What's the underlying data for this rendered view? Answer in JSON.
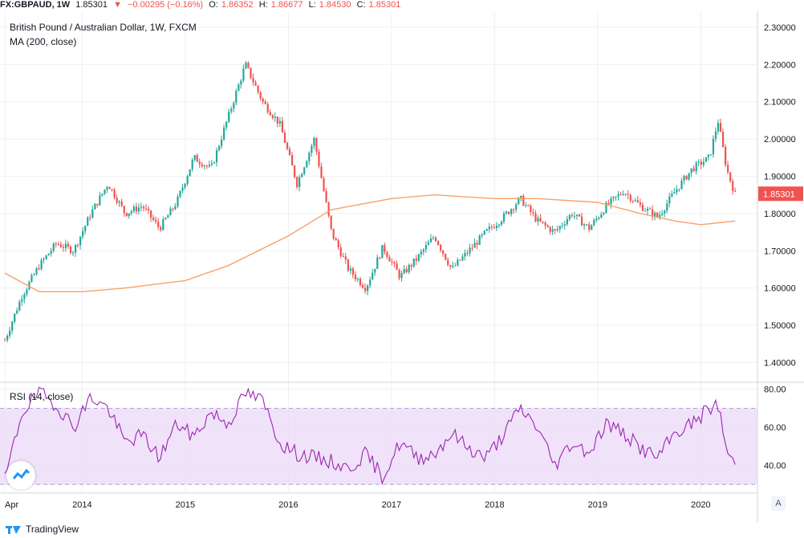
{
  "header": {
    "symbol": "FX:GBPAUD, 1W",
    "last": "1.85301",
    "change": "−0.00295 (−0.16%)",
    "open_label": "O:",
    "open": "1.86352",
    "high_label": "H:",
    "high": "1.86677",
    "low_label": "L:",
    "low": "1.84530",
    "close_label": "C:",
    "close": "1.85301"
  },
  "legend": {
    "title": "British Pound / Australian Dollar, 1W, FXCM",
    "ma": "MA (200, close)",
    "rsi": "RSI (14, close)"
  },
  "footer": {
    "brand": "TradingView"
  },
  "auto_label": "A",
  "colors": {
    "up": "#26a69a",
    "down": "#ef5350",
    "ma": "#f7a26a",
    "rsi": "#9c27b0",
    "rsi_band": "#e9d5f7"
  },
  "chart_data": [
    {
      "type": "line",
      "subtype": "candlestick",
      "title": "British Pound / Australian Dollar, 1W, FXCM",
      "x_ticks": [
        "Apr",
        "2014",
        "2015",
        "2016",
        "2017",
        "2018",
        "2019",
        "2020"
      ],
      "y_ticks": [
        "1.40000",
        "1.50000",
        "1.60000",
        "1.70000",
        "1.80000",
        "1.90000",
        "2.00000",
        "2.10000",
        "2.20000",
        "2.30000"
      ],
      "ylim": [
        1.36,
        2.33
      ],
      "last_price_label": "1.85301",
      "grid": true,
      "series": [
        {
          "name": "GBPAUD",
          "x": [
            "2013-04",
            "2013-06",
            "2013-08",
            "2013-10",
            "2013-12",
            "2014-02",
            "2014-04",
            "2014-06",
            "2014-08",
            "2014-10",
            "2014-12",
            "2015-02",
            "2015-04",
            "2015-06",
            "2015-08",
            "2015-10",
            "2015-12",
            "2016-02",
            "2016-04",
            "2016-06",
            "2016-08",
            "2016-10",
            "2016-12",
            "2017-02",
            "2017-04",
            "2017-06",
            "2017-08",
            "2017-10",
            "2017-12",
            "2018-02",
            "2018-04",
            "2018-06",
            "2018-08",
            "2018-10",
            "2018-12",
            "2019-02",
            "2019-04",
            "2019-06",
            "2019-08",
            "2019-10",
            "2019-12",
            "2020-02",
            "2020-03",
            "2020-04",
            "2020-05"
          ],
          "values": [
            1.46,
            1.58,
            1.66,
            1.72,
            1.7,
            1.8,
            1.88,
            1.8,
            1.82,
            1.76,
            1.83,
            1.95,
            1.92,
            2.06,
            2.2,
            2.1,
            2.04,
            1.88,
            2.0,
            1.75,
            1.65,
            1.6,
            1.71,
            1.63,
            1.68,
            1.74,
            1.65,
            1.7,
            1.75,
            1.79,
            1.84,
            1.78,
            1.75,
            1.8,
            1.76,
            1.82,
            1.86,
            1.82,
            1.79,
            1.86,
            1.92,
            1.95,
            2.05,
            1.92,
            1.85
          ]
        },
        {
          "name": "MA (200, close)",
          "x": [
            "2013-04",
            "2013-08",
            "2014-01",
            "2014-06",
            "2015-01",
            "2015-06",
            "2016-01",
            "2016-06",
            "2017-01",
            "2017-06",
            "2018-01",
            "2018-06",
            "2019-01",
            "2019-06",
            "2019-10",
            "2020-01",
            "2020-05"
          ],
          "values": [
            1.64,
            1.59,
            1.59,
            1.6,
            1.62,
            1.66,
            1.74,
            1.81,
            1.84,
            1.85,
            1.84,
            1.84,
            1.83,
            1.8,
            1.78,
            1.77,
            1.78
          ]
        }
      ]
    },
    {
      "type": "line",
      "title": "RSI (14, close)",
      "y_ticks": [
        "40.00",
        "60.00",
        "80.00"
      ],
      "ylim": [
        28,
        82
      ],
      "bands": [
        30,
        70
      ],
      "series": [
        {
          "name": "RSI (14, close)",
          "x": [
            "2013-04",
            "2013-06",
            "2013-08",
            "2013-10",
            "2013-12",
            "2014-02",
            "2014-04",
            "2014-06",
            "2014-08",
            "2014-10",
            "2014-12",
            "2015-02",
            "2015-04",
            "2015-06",
            "2015-08",
            "2015-10",
            "2015-12",
            "2016-02",
            "2016-04",
            "2016-06",
            "2016-08",
            "2016-10",
            "2016-12",
            "2017-02",
            "2017-04",
            "2017-06",
            "2017-08",
            "2017-10",
            "2017-12",
            "2018-02",
            "2018-04",
            "2018-06",
            "2018-08",
            "2018-10",
            "2018-12",
            "2019-02",
            "2019-04",
            "2019-06",
            "2019-08",
            "2019-10",
            "2019-12",
            "2020-02",
            "2020-03",
            "2020-04",
            "2020-05"
          ],
          "values": [
            32,
            68,
            78,
            72,
            60,
            76,
            70,
            52,
            56,
            44,
            62,
            55,
            68,
            62,
            78,
            74,
            52,
            46,
            44,
            42,
            38,
            46,
            34,
            52,
            44,
            46,
            57,
            49,
            44,
            56,
            70,
            60,
            40,
            52,
            47,
            62,
            57,
            49,
            44,
            57,
            62,
            70,
            72,
            48,
            40
          ]
        }
      ]
    }
  ]
}
